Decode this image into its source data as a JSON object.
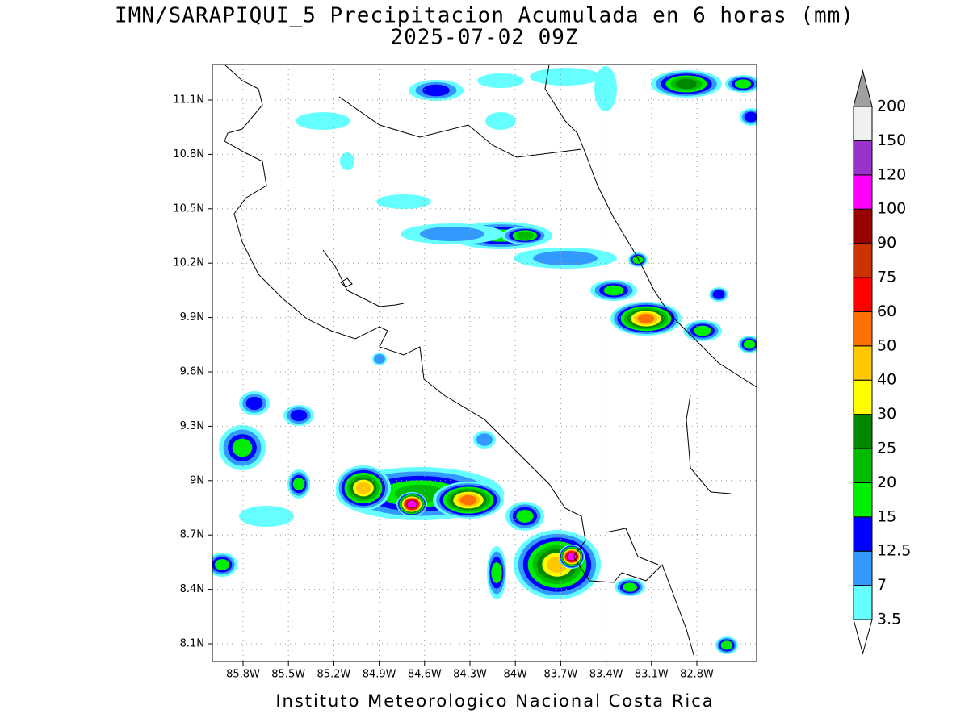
{
  "title": "IMN/SARAPIQUI_5 Precipitacion Acumulada en 6 horas (mm)",
  "subtitle": "2025-07-02 09Z",
  "footer": "Instituto Meteorologico Nacional Costa Rica",
  "map": {
    "lat_labels": [
      "11.1N",
      "10.8N",
      "10.5N",
      "10.2N",
      "9.9N",
      "9.6N",
      "9.3N",
      "9N",
      "8.7N",
      "8.4N",
      "8.1N"
    ],
    "lon_labels": [
      "85.8W",
      "85.5W",
      "85.2W",
      "84.9W",
      "84.6W",
      "84.3W",
      "84W",
      "83.7W",
      "83.4W",
      "83.1W",
      "82.8W"
    ]
  },
  "colorbar": {
    "levels": [
      3.5,
      7,
      12.5,
      15,
      20,
      25,
      30,
      40,
      50,
      60,
      75,
      90,
      100,
      120,
      150,
      200
    ],
    "colors": [
      "#66ffff",
      "#3399ff",
      "#0000ff",
      "#00ee00",
      "#00bb00",
      "#008800",
      "#ffff00",
      "#ffc800",
      "#ff7000",
      "#ff0000",
      "#cc3300",
      "#990000",
      "#ff00ff",
      "#9933cc",
      "#f0f0f0"
    ],
    "over_color": "#a0a0a0"
  }
}
